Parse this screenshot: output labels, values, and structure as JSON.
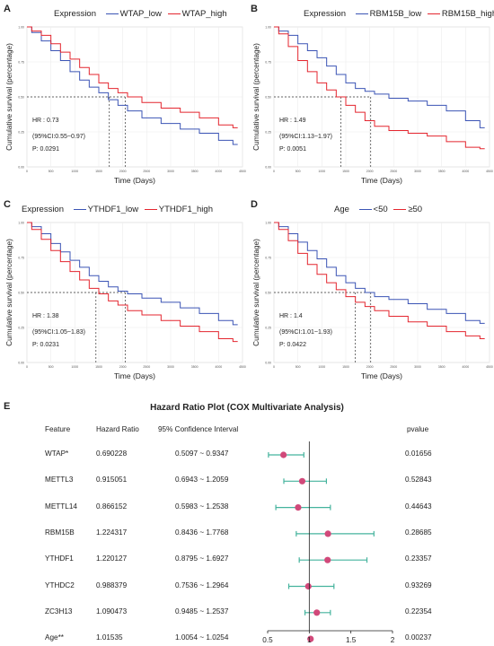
{
  "panels": [
    {
      "letter": "A",
      "legend_title": "Expression",
      "legend": [
        "WTAP_low",
        "WTAP_high"
      ],
      "colors": [
        "#3b54b5",
        "#e4262f"
      ],
      "ylabel": "Cumulative survival (percentage)",
      "xlabel": "Time (Days)",
      "stats": [
        "HR : 0.73",
        "(95%CI:0.55~0.97)",
        "P: 0.0291"
      ],
      "median": [
        1720,
        2050
      ]
    },
    {
      "letter": "B",
      "legend_title": "Expression",
      "legend": [
        "RBM15B_low",
        "RBM15B_high"
      ],
      "colors": [
        "#3b54b5",
        "#e4262f"
      ],
      "ylabel": "Cumulative survival (percentage)",
      "xlabel": "Time (Days)",
      "stats": [
        "HR : 1.49",
        "(95%CI:1.13~1.97)",
        "P: 0.0051"
      ],
      "median": [
        1400,
        2020
      ]
    },
    {
      "letter": "C",
      "legend_title": "Expression",
      "legend": [
        "YTHDF1_low",
        "YTHDF1_high"
      ],
      "colors": [
        "#3b54b5",
        "#e4262f"
      ],
      "ylabel": "Cumulative survival (percentage)",
      "xlabel": "Time (Days)",
      "stats": [
        "HR : 1.38",
        "(95%CI:1.05~1.83)",
        "P: 0.0231"
      ],
      "median": [
        1440,
        2050
      ]
    },
    {
      "letter": "D",
      "legend_title": "Age",
      "legend": [
        "<50",
        "≥50"
      ],
      "colors": [
        "#3b54b5",
        "#e4262f"
      ],
      "ylabel": "Cumulative survival (percentage)",
      "xlabel": "Time (Days)",
      "stats": [
        "HR : 1.4",
        "(95%CI:1.01~1.93)",
        "P: 0.0422"
      ],
      "median": [
        1700,
        2020
      ]
    }
  ],
  "forest": {
    "letter": "E",
    "title": "Hazard Ratio Plot (COX Multivariate Analysis)",
    "headers": {
      "feature": "Feature",
      "hr": "Hazard Ratio",
      "ci": "95% Confidence Interval",
      "p": "pvalue"
    },
    "rows": [
      {
        "feature": "WTAP*",
        "hr": "0.690228",
        "ci": "0.5097 ~ 0.9347",
        "p": "0.01656",
        "est": 0.690228,
        "lo": 0.5097,
        "hi": 0.9347
      },
      {
        "feature": "METTL3",
        "hr": "0.915051",
        "ci": "0.6943 ~ 1.2059",
        "p": "0.52843",
        "est": 0.915051,
        "lo": 0.6943,
        "hi": 1.2059
      },
      {
        "feature": "METTL14",
        "hr": "0.866152",
        "ci": "0.5983 ~ 1.2538",
        "p": "0.44643",
        "est": 0.866152,
        "lo": 0.5983,
        "hi": 1.2538
      },
      {
        "feature": "RBM15B",
        "hr": "1.224317",
        "ci": "0.8436 ~ 1.7768",
        "p": "0.28685",
        "est": 1.224317,
        "lo": 0.8436,
        "hi": 1.7768
      },
      {
        "feature": "YTHDF1",
        "hr": "1.220127",
        "ci": "0.8795 ~ 1.6927",
        "p": "0.23357",
        "est": 1.220127,
        "lo": 0.8795,
        "hi": 1.6927
      },
      {
        "feature": "YTHDC2",
        "hr": "0.988379",
        "ci": "0.7536 ~ 1.2964",
        "p": "0.93269",
        "est": 0.988379,
        "lo": 0.7536,
        "hi": 1.2964
      },
      {
        "feature": "ZC3H13",
        "hr": "1.090473",
        "ci": "0.9485 ~ 1.2537",
        "p": "0.22354",
        "est": 1.090473,
        "lo": 0.9485,
        "hi": 1.2537
      },
      {
        "feature": "Age**",
        "hr": "1.01535",
        "ci": "1.0054 ~ 1.0254",
        "p": "0.00237",
        "est": 1.01535,
        "lo": 1.0054,
        "hi": 1.0254
      }
    ],
    "xticks": [
      "0.5",
      "1",
      "1.5",
      "2"
    ],
    "xlim": [
      0.5,
      2
    ],
    "ci_color": "#45b39d",
    "point_color": "#d1497a"
  },
  "chart_data": [
    {
      "type": "line",
      "title": "",
      "xlabel": "Time (Days)",
      "ylabel": "Cumulative survival (percentage)",
      "xlim": [
        0,
        4500
      ],
      "ylim": [
        0,
        1
      ],
      "series": [
        {
          "name": "WTAP_low",
          "color": "#3b54b5",
          "x": [
            0,
            200,
            400,
            600,
            800,
            1000,
            1200,
            1400,
            1600,
            1800,
            2000,
            2200,
            2600,
            3000,
            3400,
            3800,
            4200,
            4400
          ],
          "y": [
            1,
            0.96,
            0.9,
            0.83,
            0.76,
            0.68,
            0.62,
            0.57,
            0.53,
            0.48,
            0.44,
            0.4,
            0.35,
            0.31,
            0.27,
            0.24,
            0.19,
            0.16
          ]
        },
        {
          "name": "WTAP_high",
          "color": "#e4262f",
          "x": [
            0,
            200,
            400,
            600,
            800,
            1000,
            1200,
            1400,
            1600,
            1800,
            2000,
            2200,
            2600,
            3000,
            3400,
            3800,
            4200,
            4400
          ],
          "y": [
            1,
            0.97,
            0.94,
            0.88,
            0.82,
            0.77,
            0.71,
            0.66,
            0.6,
            0.56,
            0.53,
            0.5,
            0.46,
            0.42,
            0.39,
            0.35,
            0.3,
            0.28
          ]
        }
      ]
    },
    {
      "type": "line",
      "title": "",
      "xlabel": "Time (Days)",
      "ylabel": "Cumulative survival (percentage)",
      "xlim": [
        0,
        4500
      ],
      "ylim": [
        0,
        1
      ],
      "series": [
        {
          "name": "RBM15B_low",
          "color": "#3b54b5",
          "x": [
            0,
            200,
            400,
            600,
            800,
            1000,
            1200,
            1400,
            1600,
            1800,
            2000,
            2200,
            2600,
            3000,
            3400,
            3800,
            4200,
            4400
          ],
          "y": [
            1,
            0.97,
            0.94,
            0.88,
            0.83,
            0.78,
            0.72,
            0.66,
            0.6,
            0.56,
            0.54,
            0.52,
            0.49,
            0.47,
            0.44,
            0.4,
            0.33,
            0.28
          ]
        },
        {
          "name": "RBM15B_high",
          "color": "#e4262f",
          "x": [
            0,
            200,
            400,
            600,
            800,
            1000,
            1200,
            1400,
            1600,
            1800,
            2000,
            2200,
            2600,
            3000,
            3400,
            3800,
            4200,
            4400
          ],
          "y": [
            1,
            0.95,
            0.86,
            0.76,
            0.68,
            0.6,
            0.55,
            0.5,
            0.44,
            0.39,
            0.33,
            0.29,
            0.26,
            0.24,
            0.22,
            0.18,
            0.14,
            0.13
          ]
        }
      ]
    },
    {
      "type": "line",
      "title": "",
      "xlabel": "Time (Days)",
      "ylabel": "Cumulative survival (percentage)",
      "xlim": [
        0,
        4500
      ],
      "ylim": [
        0,
        1
      ],
      "series": [
        {
          "name": "YTHDF1_low",
          "color": "#3b54b5",
          "x": [
            0,
            200,
            400,
            600,
            800,
            1000,
            1200,
            1400,
            1600,
            1800,
            2000,
            2200,
            2600,
            3000,
            3400,
            3800,
            4200,
            4400
          ],
          "y": [
            1,
            0.97,
            0.92,
            0.85,
            0.79,
            0.73,
            0.68,
            0.62,
            0.58,
            0.54,
            0.51,
            0.49,
            0.46,
            0.43,
            0.39,
            0.35,
            0.3,
            0.27
          ]
        },
        {
          "name": "YTHDF1_high",
          "color": "#e4262f",
          "x": [
            0,
            200,
            400,
            600,
            800,
            1000,
            1200,
            1400,
            1600,
            1800,
            2000,
            2200,
            2600,
            3000,
            3400,
            3800,
            4200,
            4400
          ],
          "y": [
            1,
            0.95,
            0.88,
            0.8,
            0.72,
            0.65,
            0.59,
            0.53,
            0.49,
            0.44,
            0.41,
            0.37,
            0.34,
            0.3,
            0.26,
            0.22,
            0.17,
            0.15
          ]
        }
      ]
    },
    {
      "type": "line",
      "title": "",
      "xlabel": "Time (Days)",
      "ylabel": "Cumulative survival (percentage)",
      "xlim": [
        0,
        4500
      ],
      "ylim": [
        0,
        1
      ],
      "series": [
        {
          "name": "<50",
          "color": "#3b54b5",
          "x": [
            0,
            200,
            400,
            600,
            800,
            1000,
            1200,
            1400,
            1600,
            1800,
            2000,
            2200,
            2600,
            3000,
            3400,
            3800,
            4200,
            4400
          ],
          "y": [
            1,
            0.97,
            0.92,
            0.86,
            0.8,
            0.74,
            0.68,
            0.62,
            0.57,
            0.53,
            0.5,
            0.47,
            0.45,
            0.42,
            0.38,
            0.35,
            0.3,
            0.28
          ]
        },
        {
          "name": "≥50",
          "color": "#e4262f",
          "x": [
            0,
            200,
            400,
            600,
            800,
            1000,
            1200,
            1400,
            1600,
            1800,
            2000,
            2200,
            2600,
            3000,
            3400,
            3800,
            4200,
            4400
          ],
          "y": [
            1,
            0.95,
            0.87,
            0.78,
            0.7,
            0.63,
            0.57,
            0.52,
            0.47,
            0.43,
            0.4,
            0.37,
            0.33,
            0.29,
            0.26,
            0.22,
            0.19,
            0.17
          ]
        }
      ]
    },
    {
      "type": "scatter",
      "title": "Hazard Ratio Plot (COX Multivariate Analysis)",
      "xlabel": "",
      "ylabel": "",
      "xlim": [
        0.5,
        2
      ],
      "categories": [
        "WTAP*",
        "METTL3",
        "METTL14",
        "RBM15B",
        "YTHDF1",
        "YTHDC2",
        "ZC3H13",
        "Age**"
      ],
      "values": [
        0.690228,
        0.915051,
        0.866152,
        1.224317,
        1.220127,
        0.988379,
        1.090473,
        1.01535
      ],
      "lower": [
        0.5097,
        0.6943,
        0.5983,
        0.8436,
        0.8795,
        0.7536,
        0.9485,
        1.0054
      ],
      "upper": [
        0.9347,
        1.2059,
        1.2538,
        1.7768,
        1.6927,
        1.2964,
        1.2537,
        1.0254
      ]
    }
  ]
}
